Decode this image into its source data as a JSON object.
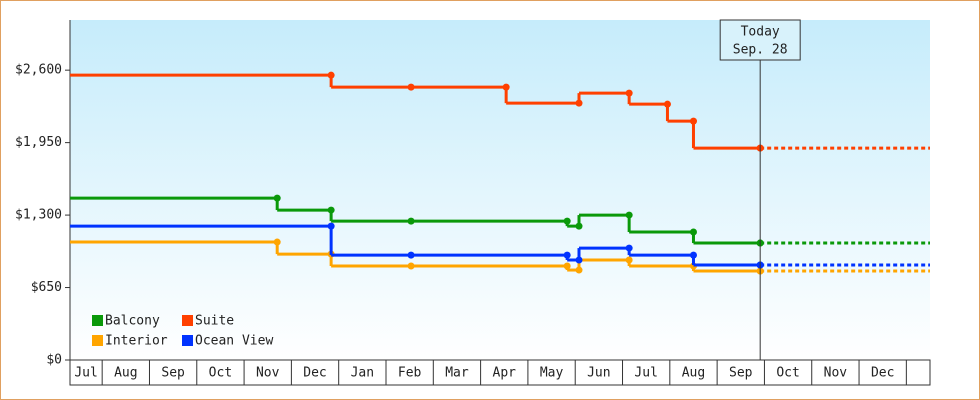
{
  "chart_data": {
    "type": "step",
    "xlim": [
      0.32,
      18.5
    ],
    "xticks": [
      {
        "value": 0.5,
        "label": "Jul"
      },
      {
        "value": 1.5,
        "label": "Aug"
      },
      {
        "value": 2.5,
        "label": "Sep"
      },
      {
        "value": 3.5,
        "label": "Oct"
      },
      {
        "value": 4.5,
        "label": "Nov"
      },
      {
        "value": 5.5,
        "label": "Dec"
      },
      {
        "value": 6.5,
        "label": "Jan"
      },
      {
        "value": 7.5,
        "label": "Feb"
      },
      {
        "value": 8.5,
        "label": "Mar"
      },
      {
        "value": 9.5,
        "label": "Apr"
      },
      {
        "value": 10.5,
        "label": "May"
      },
      {
        "value": 11.5,
        "label": "Jun"
      },
      {
        "value": 12.5,
        "label": "Jul"
      },
      {
        "value": 13.5,
        "label": "Aug"
      },
      {
        "value": 14.5,
        "label": "Sep"
      },
      {
        "value": 15.5,
        "label": "Oct"
      },
      {
        "value": 16.5,
        "label": "Nov"
      },
      {
        "value": 17.5,
        "label": "Dec"
      }
    ],
    "ylim": [
      0,
      3050
    ],
    "yticks": [
      {
        "value": 0,
        "label": "$0"
      },
      {
        "value": 650,
        "label": "$650"
      },
      {
        "value": 1300,
        "label": "$1,300"
      },
      {
        "value": 1950,
        "label": "$1,950"
      },
      {
        "value": 2600,
        "label": "$2,600"
      }
    ],
    "today": {
      "x": 14.91,
      "text": "Today",
      "date": "Sep. 28"
    },
    "series": [
      {
        "name": "Balcony",
        "color": "#0a990a",
        "x": [
          0.32,
          4.7,
          5.84,
          7.53,
          10.83,
          11.08,
          12.14,
          13.5,
          14.91
        ],
        "values": [
          1452,
          1345,
          1246,
          1246,
          1201,
          1300,
          1148,
          1049,
          1049
        ]
      },
      {
        "name": "Suite",
        "color": "#ff4000",
        "x": [
          0.32,
          5.84,
          7.53,
          9.54,
          11.08,
          12.14,
          12.95,
          13.5,
          14.91
        ],
        "values": [
          2555,
          2448,
          2448,
          2304,
          2394,
          2295,
          2143,
          1901,
          1901
        ]
      },
      {
        "name": "Interior",
        "color": "#ffa500",
        "x": [
          0.32,
          4.7,
          5.84,
          7.53,
          10.83,
          11.08,
          12.14,
          13.5,
          14.91
        ],
        "values": [
          1058,
          950,
          843,
          843,
          807,
          897,
          843,
          798,
          798
        ]
      },
      {
        "name": "Ocean View",
        "color": "#0033ff",
        "x": [
          0.32,
          5.84,
          7.53,
          10.83,
          11.08,
          12.14,
          13.5,
          14.91
        ],
        "values": [
          1201,
          941,
          941,
          897,
          1004,
          941,
          852,
          852
        ]
      }
    ]
  }
}
